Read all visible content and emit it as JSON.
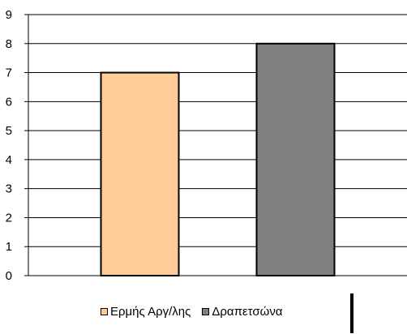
{
  "chart_data": {
    "type": "bar",
    "categories": [
      "Ερμής Αργ/λης",
      "Δραπετσώνα"
    ],
    "values": [
      7,
      8
    ],
    "colors": [
      "#FFCC99",
      "#808080"
    ],
    "title": "",
    "xlabel": "",
    "ylabel": "",
    "ylim": [
      0,
      9
    ],
    "yticks": [
      "0",
      "1",
      "2",
      "3",
      "4",
      "5",
      "6",
      "7",
      "8",
      "9"
    ],
    "grid": true,
    "legend_position": "bottom"
  },
  "legend": {
    "items": [
      {
        "label": "Ερμής Αργ/λης",
        "color": "#FFCC99"
      },
      {
        "label": "Δραπετσώνα",
        "color": "#808080"
      }
    ]
  }
}
